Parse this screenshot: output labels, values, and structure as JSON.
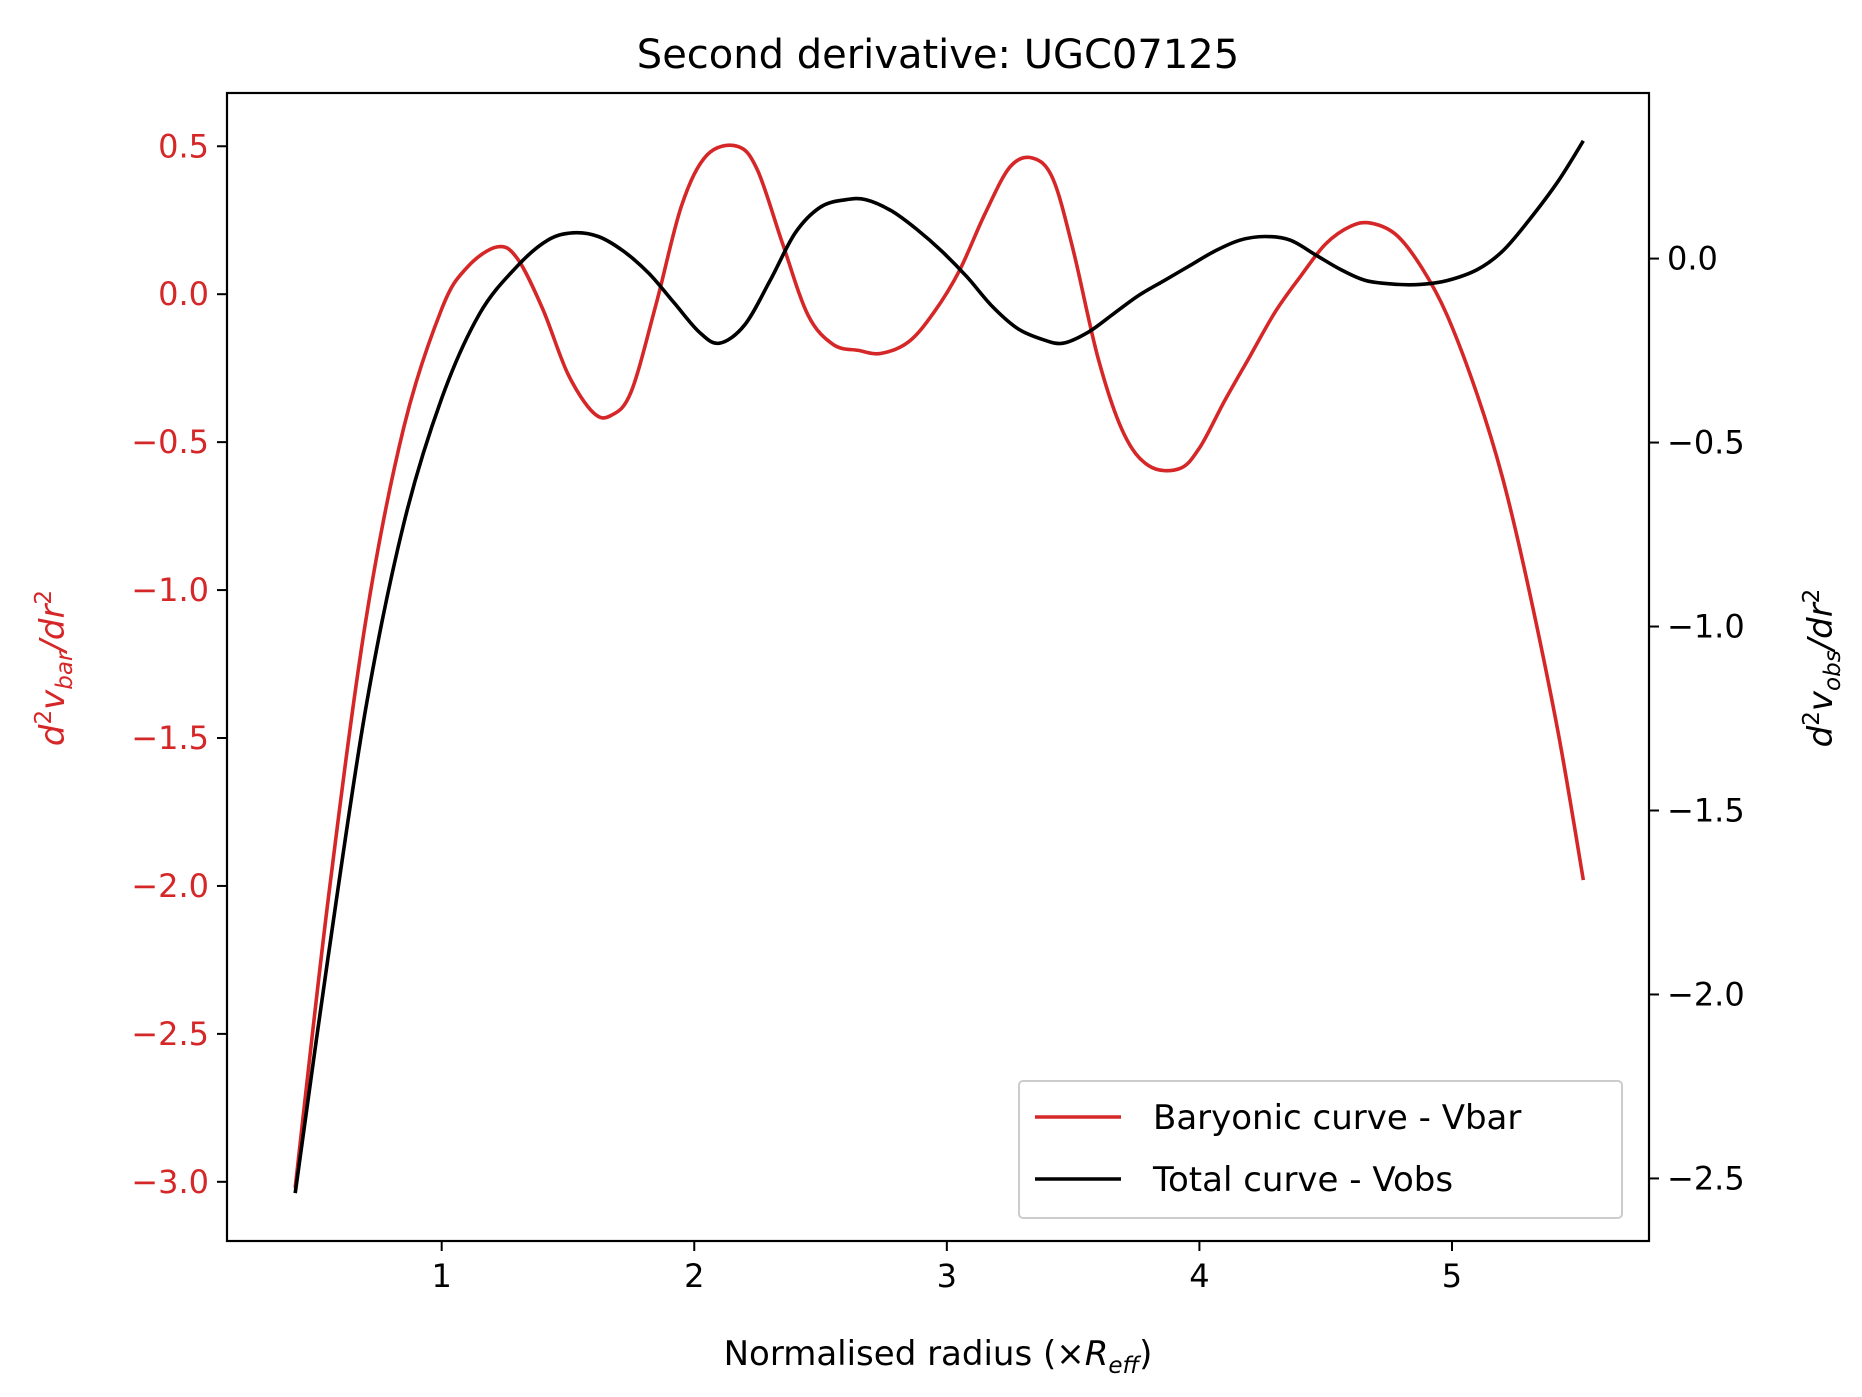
{
  "chart_data": {
    "type": "line",
    "title": "Second derivative: UGC07125",
    "xlabel": "Normalised radius (×R_eff)",
    "xlabel_main": "Normalised radius (×",
    "xlabel_sym": "R",
    "xlabel_sub": "eff",
    "xlabel_end": ")",
    "ylabel_left": "d²v_bar/dr²",
    "ylabel_left_parts": {
      "d": "d",
      "sup": "2",
      "v": "v",
      "sub": "bar",
      "slash": "/dr",
      "sup2": "2"
    },
    "ylabel_right": "d²v_obs/dr²",
    "ylabel_right_parts": {
      "d": "d",
      "sup": "2",
      "v": "v",
      "sub": "obs",
      "slash": "/dr",
      "sup2": "2"
    },
    "xlim": [
      0.15,
      5.78
    ],
    "ylim_left": [
      -3.2,
      0.68
    ],
    "ylim_right": [
      -2.67,
      0.45
    ],
    "xticks": [
      1,
      2,
      3,
      4,
      5
    ],
    "xtick_labels": [
      "1",
      "2",
      "3",
      "4",
      "5"
    ],
    "yticks_left": [
      0.5,
      0.0,
      -0.5,
      -1.0,
      -1.5,
      -2.0,
      -2.5,
      -3.0
    ],
    "ytick_left_labels": [
      "0.5",
      "0.0",
      "−0.5",
      "−1.0",
      "−1.5",
      "−2.0",
      "−2.5",
      "−3.0"
    ],
    "yticks_right": [
      0.0,
      -0.5,
      -1.0,
      -1.5,
      -2.0,
      -2.5
    ],
    "ytick_right_labels": [
      "0.0",
      "−0.5",
      "−1.0",
      "−1.5",
      "−2.0",
      "−2.5"
    ],
    "legend_position": "lower right",
    "series": [
      {
        "name": "Baryonic curve - Vbar",
        "axis": "left",
        "color": "#d62728",
        "x": [
          0.42,
          0.55,
          0.7,
          0.85,
          1.0,
          1.1,
          1.22,
          1.3,
          1.4,
          1.5,
          1.6,
          1.67,
          1.75,
          1.85,
          1.95,
          2.05,
          2.17,
          2.25,
          2.35,
          2.45,
          2.55,
          2.65,
          2.74,
          2.85,
          2.95,
          3.05,
          3.15,
          3.25,
          3.34,
          3.42,
          3.5,
          3.6,
          3.7,
          3.8,
          3.92,
          4.0,
          4.1,
          4.2,
          4.3,
          4.4,
          4.5,
          4.6,
          4.68,
          4.78,
          4.88,
          4.98,
          5.1,
          5.2,
          5.3,
          5.42,
          5.52
        ],
        "y": [
          -3.02,
          -2.05,
          -1.1,
          -0.45,
          -0.05,
          0.09,
          0.16,
          0.12,
          -0.05,
          -0.27,
          -0.4,
          -0.41,
          -0.33,
          -0.03,
          0.3,
          0.47,
          0.5,
          0.42,
          0.17,
          -0.07,
          -0.17,
          -0.19,
          -0.2,
          -0.16,
          -0.06,
          0.08,
          0.27,
          0.43,
          0.46,
          0.39,
          0.15,
          -0.22,
          -0.47,
          -0.58,
          -0.59,
          -0.52,
          -0.36,
          -0.21,
          -0.06,
          0.06,
          0.17,
          0.23,
          0.24,
          0.2,
          0.09,
          -0.07,
          -0.34,
          -0.62,
          -0.98,
          -1.48,
          -1.98
        ]
      },
      {
        "name": "Total curve - Vobs",
        "axis": "right",
        "color": "#000000",
        "x": [
          0.42,
          0.55,
          0.7,
          0.85,
          1.0,
          1.15,
          1.3,
          1.42,
          1.52,
          1.62,
          1.72,
          1.82,
          1.92,
          2.02,
          2.1,
          2.2,
          2.3,
          2.4,
          2.5,
          2.6,
          2.68,
          2.78,
          2.88,
          2.98,
          3.08,
          3.18,
          3.28,
          3.38,
          3.46,
          3.56,
          3.66,
          3.76,
          3.86,
          3.96,
          4.06,
          4.16,
          4.26,
          4.36,
          4.46,
          4.56,
          4.66,
          4.78,
          4.88,
          4.98,
          5.1,
          5.2,
          5.3,
          5.42,
          5.52
        ],
        "y": [
          -2.54,
          -1.9,
          -1.22,
          -0.72,
          -0.38,
          -0.15,
          -0.02,
          0.05,
          0.07,
          0.06,
          0.02,
          -0.04,
          -0.12,
          -0.2,
          -0.23,
          -0.18,
          -0.06,
          0.07,
          0.14,
          0.16,
          0.16,
          0.13,
          0.08,
          0.02,
          -0.05,
          -0.13,
          -0.19,
          -0.22,
          -0.23,
          -0.2,
          -0.15,
          -0.1,
          -0.06,
          -0.02,
          0.02,
          0.05,
          0.06,
          0.05,
          0.01,
          -0.03,
          -0.06,
          -0.07,
          -0.07,
          -0.06,
          -0.03,
          0.02,
          0.1,
          0.21,
          0.32
        ]
      }
    ]
  }
}
